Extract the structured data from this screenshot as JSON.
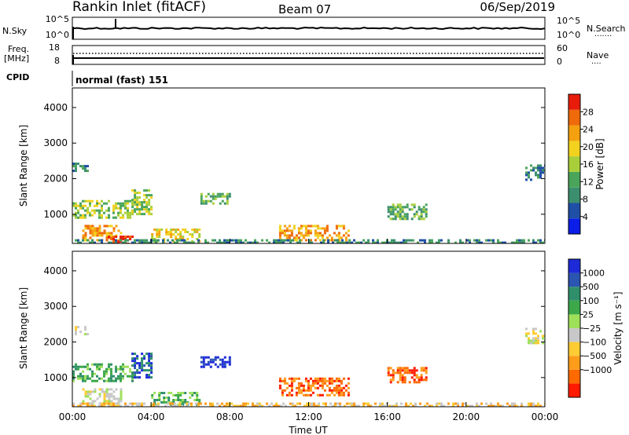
{
  "header": {
    "station": "Rankin Inlet (fitACF)",
    "beam": "Beam 07",
    "date": "06/Sep/2019"
  },
  "strip_nsky": {
    "left_label": "N.Sky",
    "right_label": "N.Search",
    "right_legend_dots": "·······",
    "left_ticks": [
      "10^5",
      "10^0"
    ],
    "right_ticks": [
      "10^5",
      "10^0"
    ]
  },
  "strip_freq": {
    "left_label_1": "Freq.",
    "left_label_2": "[MHz]",
    "right_label": "Nave",
    "right_legend_dots": "····",
    "left_ticks": [
      "18",
      "8"
    ],
    "right_ticks": [
      "60",
      "0"
    ]
  },
  "strip_cpid": {
    "label": "CPID",
    "text": "normal (fast) 151"
  },
  "colors": {
    "power": [
      "#0a1ee8",
      "#1f4fa6",
      "#3b8f6e",
      "#4aa55a",
      "#a8cf3a",
      "#f2d21e",
      "#f5a00f",
      "#ef6a0a",
      "#e81c0a"
    ],
    "velocity": [
      "#ff1a00",
      "#ff6a00",
      "#ff9c1a",
      "#ffcc33",
      "#c8c8c8",
      "#9ee05a",
      "#3ca84a",
      "#2f8f6a",
      "#2a55b0",
      "#1d2ad8"
    ]
  },
  "chart_data": [
    {
      "type": "heatmap",
      "panel": "power",
      "ylabel": "Slant Range [km]",
      "ylim": [
        180,
        4550
      ],
      "y_ticks": [
        "1000",
        "2000",
        "3000",
        "4000"
      ],
      "y_tick_values": [
        1000,
        2000,
        3000,
        4000
      ],
      "colorbar": {
        "label": "Power [dB]",
        "ticks": [
          "4",
          "8",
          "12",
          "16",
          "20",
          "24",
          "28"
        ],
        "tick_values": [
          4,
          8,
          12,
          16,
          20,
          24,
          28
        ],
        "range": [
          0,
          32
        ]
      },
      "regions": [
        {
          "t0": 0.0,
          "t1": 3.0,
          "r0": 900,
          "r1": 1400,
          "level": 4
        },
        {
          "t0": 0.5,
          "t1": 2.5,
          "r0": 300,
          "r1": 700,
          "level": 6
        },
        {
          "t0": 1.8,
          "t1": 3.0,
          "r0": 200,
          "r1": 400,
          "level": 8
        },
        {
          "t0": 3.0,
          "t1": 4.0,
          "r0": 1000,
          "r1": 1700,
          "level": 4
        },
        {
          "t0": 4.0,
          "t1": 6.5,
          "r0": 250,
          "r1": 600,
          "level": 5
        },
        {
          "t0": 6.5,
          "t1": 8.0,
          "r0": 1300,
          "r1": 1600,
          "level": 3
        },
        {
          "t0": 10.5,
          "t1": 14.0,
          "r0": 250,
          "r1": 700,
          "level": 6
        },
        {
          "t0": 16.0,
          "t1": 18.0,
          "r0": 900,
          "r1": 1300,
          "level": 3
        },
        {
          "t0": 0.0,
          "t1": 0.8,
          "r0": 2250,
          "r1": 2450,
          "level": 2
        },
        {
          "t0": 23.0,
          "t1": 24.0,
          "r0": 2000,
          "r1": 2400,
          "level": 2
        },
        {
          "t0": 0.0,
          "t1": 24.0,
          "r0": 180,
          "r1": 300,
          "level": 2
        }
      ]
    },
    {
      "type": "heatmap",
      "panel": "velocity",
      "ylabel": "Slant Range [km]",
      "xlabel": "Time UT",
      "ylim": [
        180,
        4550
      ],
      "y_ticks": [
        "1000",
        "2000",
        "3000",
        "4000"
      ],
      "y_tick_values": [
        1000,
        2000,
        3000,
        4000
      ],
      "x_ticks": [
        "00:00",
        "04:00",
        "08:00",
        "12:00",
        "16:00",
        "20:00",
        "00:00"
      ],
      "x_tick_values": [
        0,
        4,
        8,
        12,
        16,
        20,
        24
      ],
      "xlim": [
        0,
        24
      ],
      "colorbar": {
        "label": "Velocity [m s⁻¹]",
        "ticks": [
          "1000",
          "500",
          "100",
          "25",
          "−25",
          "−100",
          "−500",
          "−1000"
        ]
      },
      "regions": [
        {
          "t0": 0.0,
          "t1": 3.0,
          "r0": 900,
          "r1": 1400,
          "level": 6
        },
        {
          "t0": 0.5,
          "t1": 2.5,
          "r0": 300,
          "r1": 700,
          "level": 4
        },
        {
          "t0": 3.0,
          "t1": 4.0,
          "r0": 1000,
          "r1": 1700,
          "level": 8
        },
        {
          "t0": 4.0,
          "t1": 6.5,
          "r0": 250,
          "r1": 600,
          "level": 6
        },
        {
          "t0": 6.5,
          "t1": 8.0,
          "r0": 1300,
          "r1": 1600,
          "level": 9
        },
        {
          "t0": 10.5,
          "t1": 14.0,
          "r0": 500,
          "r1": 1000,
          "level": 1
        },
        {
          "t0": 16.0,
          "t1": 18.0,
          "r0": 900,
          "r1": 1300,
          "level": 1
        },
        {
          "t0": 0.0,
          "t1": 0.8,
          "r0": 2250,
          "r1": 2450,
          "level": 4
        },
        {
          "t0": 23.0,
          "t1": 24.0,
          "r0": 2000,
          "r1": 2400,
          "level": 4
        },
        {
          "t0": 0.0,
          "t1": 24.0,
          "r0": 180,
          "r1": 300,
          "level": 3
        }
      ]
    }
  ]
}
